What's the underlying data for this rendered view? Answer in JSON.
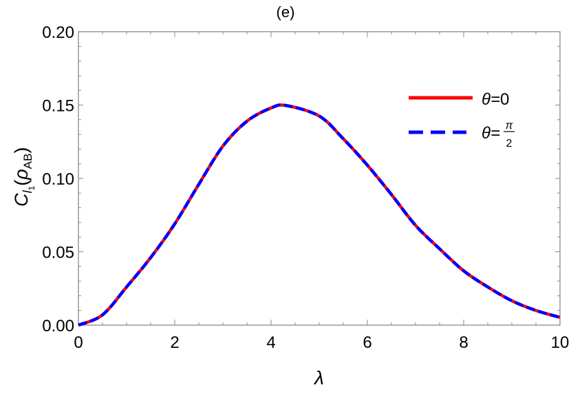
{
  "chart_data": {
    "type": "line",
    "title": "(e)",
    "xlabel": "λ",
    "ylabel": {
      "main": "C",
      "sub1": "l",
      "sub2": "1",
      "arg": "ρ",
      "argsub": "AB"
    },
    "xlim": [
      0,
      10
    ],
    "ylim": [
      0,
      0.2
    ],
    "x_ticks": [
      "0",
      "2",
      "4",
      "6",
      "8",
      "10"
    ],
    "y_ticks": [
      "0.00",
      "0.05",
      "0.10",
      "0.15",
      "0.20"
    ],
    "grid": false,
    "legend_position": "top-right",
    "x": [
      0,
      0.5,
      1,
      1.5,
      2,
      2.5,
      3,
      3.5,
      4,
      4.31,
      5,
      5.5,
      6,
      6.5,
      7,
      7.5,
      8,
      8.5,
      9,
      9.5,
      10
    ],
    "series": [
      {
        "name": "θ=0",
        "legend_lhs": "θ=",
        "legend_rhs": "0",
        "color": "#ff0000",
        "style": "solid",
        "values": [
          0,
          0.007,
          0.026,
          0.046,
          0.069,
          0.096,
          0.122,
          0.139,
          0.148,
          0.1497,
          0.1425,
          0.127,
          0.109,
          0.089,
          0.068,
          0.052,
          0.037,
          0.026,
          0.0166,
          0.01,
          0.0053
        ]
      },
      {
        "name": "θ=π/2",
        "legend_lhs": "θ=",
        "legend_num": "π",
        "legend_den": "2",
        "color": "#0000ff",
        "style": "dashed",
        "values": [
          0,
          0.007,
          0.026,
          0.046,
          0.069,
          0.096,
          0.122,
          0.139,
          0.148,
          0.1497,
          0.1425,
          0.127,
          0.109,
          0.089,
          0.068,
          0.052,
          0.037,
          0.026,
          0.0166,
          0.01,
          0.0053
        ]
      }
    ]
  }
}
